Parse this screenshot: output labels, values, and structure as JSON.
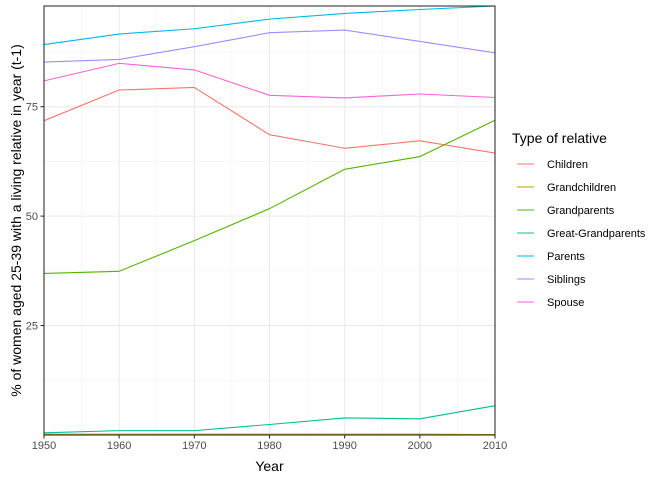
{
  "chart_data": {
    "type": "line",
    "title": "",
    "xlabel": "Year",
    "ylabel": "% of women aged 25-39 with a living relative in year (t-1)",
    "x": [
      1950,
      1960,
      1970,
      1980,
      1990,
      2000,
      2010
    ],
    "xlim": [
      1950,
      2010
    ],
    "ylim": [
      0,
      98
    ],
    "x_ticks": [
      "1950",
      "1960",
      "1970",
      "1980",
      "1990",
      "2000",
      "2010"
    ],
    "y_ticks": [
      25,
      50,
      75
    ],
    "y_tick_labels": [
      "25",
      "50",
      "75"
    ],
    "grid": true,
    "legend": {
      "title": "Type of relative",
      "position": "right"
    },
    "series": [
      {
        "name": "Children",
        "color": "#F8766D",
        "values": [
          71.8,
          78.8,
          79.4,
          68.6,
          65.5,
          67.2,
          64.4
        ]
      },
      {
        "name": "Grandchildren",
        "color": "#C49A00",
        "values": [
          0.2,
          0.2,
          0.2,
          0.2,
          0.2,
          0.2,
          0.1
        ]
      },
      {
        "name": "Grandparents",
        "color": "#53B400",
        "values": [
          36.9,
          37.4,
          44.4,
          51.7,
          60.7,
          63.6,
          71.9
        ]
      },
      {
        "name": "Great-Grandparents",
        "color": "#00C094",
        "values": [
          0.5,
          1.0,
          1.0,
          2.4,
          3.9,
          3.7,
          6.7
        ]
      },
      {
        "name": "Parents",
        "color": "#00B6EB",
        "values": [
          89.2,
          91.6,
          92.8,
          95.0,
          96.3,
          97.2,
          98.0
        ]
      },
      {
        "name": "Siblings",
        "color": "#A58AFF",
        "values": [
          85.2,
          85.8,
          88.7,
          91.9,
          92.5,
          89.9,
          87.3
        ]
      },
      {
        "name": "Spouse",
        "color": "#FB61D7",
        "values": [
          80.9,
          84.9,
          83.4,
          77.6,
          77.0,
          77.9,
          77.1
        ]
      }
    ]
  }
}
